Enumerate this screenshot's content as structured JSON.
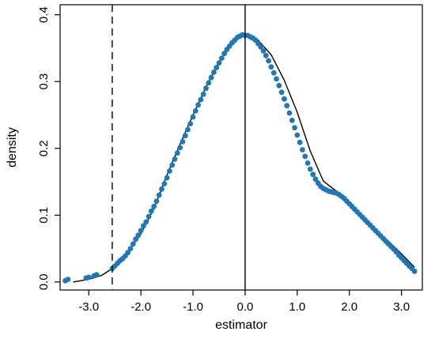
{
  "chart_data": {
    "type": "scatter",
    "xlabel": "estimator",
    "ylabel": "density",
    "xlim": [
      -3.55,
      3.4
    ],
    "ylim": [
      -0.012,
      0.415
    ],
    "x_ticks": [
      -3.0,
      -2.0,
      -1.0,
      0.0,
      1.0,
      2.0,
      3.0
    ],
    "x_tick_labels": [
      "-3.0",
      "-2.0",
      "-1.0",
      "0.0",
      "1.0",
      "2.0",
      "3.0"
    ],
    "y_ticks": [
      0.0,
      0.1,
      0.2,
      0.3,
      0.4
    ],
    "y_tick_labels": [
      "0.0",
      "0.1",
      "0.2",
      "0.3",
      "0.4"
    ],
    "grid": false,
    "reference_lines": [
      {
        "axis": "x",
        "value": -2.55,
        "style": "dashed"
      },
      {
        "axis": "x",
        "value": 0.0,
        "style": "solid"
      }
    ],
    "curve": {
      "style": "solid",
      "color": "#000000",
      "x": [
        -3.3,
        -3.0,
        -2.75,
        -2.55,
        -2.3,
        -2.0,
        -1.75,
        -1.5,
        -1.25,
        -1.0,
        -0.75,
        -0.5,
        -0.25,
        0.0,
        0.25,
        0.5,
        0.75,
        1.0,
        1.25,
        1.5,
        1.75,
        2.0,
        2.25,
        2.5,
        2.75,
        3.0,
        3.25
      ],
      "y": [
        0.0,
        0.004,
        0.01,
        0.02,
        0.04,
        0.072,
        0.11,
        0.16,
        0.206,
        0.25,
        0.292,
        0.33,
        0.358,
        0.37,
        0.362,
        0.34,
        0.302,
        0.254,
        0.196,
        0.151,
        0.136,
        0.116,
        0.097,
        0.079,
        0.061,
        0.042,
        0.022
      ]
    },
    "points": {
      "color": "#1f77b4",
      "x": [
        -3.45,
        -3.4,
        -3.05,
        -3.0,
        -2.9,
        -2.85,
        -2.55,
        -2.5,
        -2.45,
        -2.4,
        -2.35,
        -2.3,
        -2.25,
        -2.2,
        -2.15,
        -2.1,
        -2.05,
        -2.0,
        -1.95,
        -1.9,
        -1.85,
        -1.8,
        -1.75,
        -1.7,
        -1.65,
        -1.6,
        -1.55,
        -1.5,
        -1.45,
        -1.4,
        -1.35,
        -1.3,
        -1.25,
        -1.2,
        -1.15,
        -1.1,
        -1.05,
        -1.0,
        -0.95,
        -0.9,
        -0.85,
        -0.8,
        -0.75,
        -0.7,
        -0.65,
        -0.6,
        -0.55,
        -0.5,
        -0.45,
        -0.4,
        -0.35,
        -0.3,
        -0.25,
        -0.2,
        -0.15,
        -0.1,
        -0.05,
        0.0,
        0.05,
        0.1,
        0.15,
        0.2,
        0.25,
        0.3,
        0.35,
        0.4,
        0.45,
        0.5,
        0.55,
        0.6,
        0.65,
        0.7,
        0.75,
        0.8,
        0.85,
        0.9,
        0.95,
        1.0,
        1.05,
        1.1,
        1.15,
        1.2,
        1.25,
        1.3,
        1.35,
        1.4,
        1.45,
        1.5,
        1.55,
        1.6,
        1.65,
        1.7,
        1.75,
        1.8,
        1.85,
        1.9,
        1.95,
        2.0,
        2.05,
        2.1,
        2.15,
        2.2,
        2.25,
        2.3,
        2.35,
        2.4,
        2.45,
        2.5,
        2.55,
        2.6,
        2.65,
        2.7,
        2.75,
        2.8,
        2.85,
        2.9,
        2.95,
        3.0,
        3.05,
        3.1,
        3.15,
        3.2,
        3.25
      ],
      "y": [
        0.002,
        0.004,
        0.006,
        0.007,
        0.009,
        0.011,
        0.02,
        0.024,
        0.028,
        0.032,
        0.035,
        0.039,
        0.044,
        0.05,
        0.057,
        0.064,
        0.07,
        0.077,
        0.084,
        0.09,
        0.098,
        0.106,
        0.113,
        0.121,
        0.13,
        0.139,
        0.147,
        0.156,
        0.166,
        0.175,
        0.184,
        0.193,
        0.201,
        0.21,
        0.219,
        0.228,
        0.237,
        0.247,
        0.256,
        0.265,
        0.273,
        0.281,
        0.29,
        0.298,
        0.306,
        0.314,
        0.321,
        0.328,
        0.335,
        0.342,
        0.348,
        0.353,
        0.358,
        0.362,
        0.366,
        0.368,
        0.37,
        0.369,
        0.369,
        0.367,
        0.365,
        0.362,
        0.357,
        0.352,
        0.346,
        0.339,
        0.331,
        0.322,
        0.313,
        0.304,
        0.294,
        0.284,
        0.274,
        0.264,
        0.253,
        0.242,
        0.231,
        0.22,
        0.209,
        0.198,
        0.188,
        0.178,
        0.169,
        0.161,
        0.154,
        0.148,
        0.143,
        0.14,
        0.138,
        0.136,
        0.135,
        0.134,
        0.133,
        0.131,
        0.128,
        0.125,
        0.121,
        0.117,
        0.113,
        0.109,
        0.105,
        0.101,
        0.097,
        0.093,
        0.089,
        0.085,
        0.081,
        0.077,
        0.073,
        0.069,
        0.065,
        0.061,
        0.057,
        0.053,
        0.049,
        0.045,
        0.04,
        0.036,
        0.032,
        0.028,
        0.024,
        0.02,
        0.016
      ]
    }
  }
}
